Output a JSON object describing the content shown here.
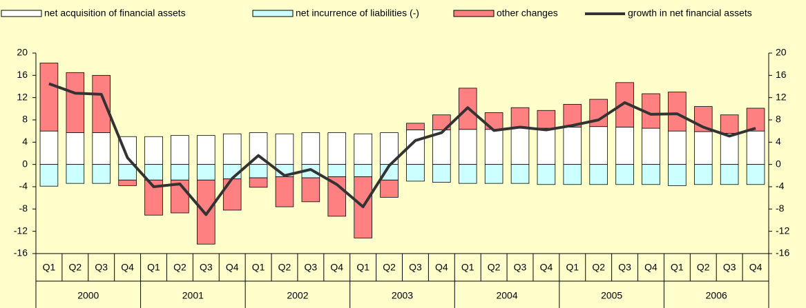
{
  "chart_data": {
    "type": "bar",
    "stacked": true,
    "categories": [
      "Q1",
      "Q2",
      "Q3",
      "Q4",
      "Q1",
      "Q2",
      "Q3",
      "Q4",
      "Q1",
      "Q2",
      "Q3",
      "Q4",
      "Q1",
      "Q2",
      "Q3",
      "Q4",
      "Q1",
      "Q2",
      "Q3",
      "Q4",
      "Q1",
      "Q2",
      "Q3",
      "Q4",
      "Q1",
      "Q2",
      "Q3",
      "Q4"
    ],
    "years": [
      "2000",
      "2001",
      "2002",
      "2003",
      "2004",
      "2005",
      "2006"
    ],
    "ylim": [
      -16,
      20
    ],
    "yticks": [
      -16,
      -12,
      -8,
      -4,
      0,
      4,
      8,
      12,
      16,
      20
    ],
    "series": [
      {
        "name": "net acquisition of financial assets",
        "color": "#ffffff",
        "values": [
          6.0,
          5.7,
          5.7,
          5.0,
          5.0,
          5.2,
          5.2,
          5.5,
          5.7,
          5.5,
          5.7,
          5.7,
          5.5,
          5.7,
          6.2,
          6.2,
          6.3,
          6.3,
          6.5,
          6.5,
          6.7,
          6.8,
          6.7,
          6.5,
          6.0,
          5.9,
          5.6,
          6.0
        ]
      },
      {
        "name": "net incurrence of liabilities (-)",
        "color": "#ccffff",
        "values": [
          -3.9,
          -3.4,
          -3.4,
          -2.8,
          -2.8,
          -2.8,
          -2.8,
          -2.6,
          -2.4,
          -2.2,
          -2.4,
          -2.2,
          -2.2,
          -2.8,
          -3.0,
          -3.2,
          -3.4,
          -3.4,
          -3.4,
          -3.6,
          -3.6,
          -3.6,
          -3.6,
          -3.6,
          -3.8,
          -3.6,
          -3.6,
          -3.6
        ]
      },
      {
        "name": "other changes",
        "color": "#ff8080",
        "values": [
          12.2,
          10.8,
          10.3,
          -1.0,
          -6.3,
          -5.9,
          -11.5,
          -5.6,
          -1.7,
          -5.4,
          -4.3,
          -7.1,
          -11.0,
          -3.1,
          1.2,
          2.7,
          7.4,
          3.0,
          3.7,
          3.2,
          4.1,
          4.9,
          8.0,
          6.2,
          7.0,
          4.5,
          3.3,
          4.1
        ]
      },
      {
        "name": "growth in net financial assets",
        "type": "line",
        "color": "#333333",
        "values": [
          14.5,
          12.8,
          12.6,
          1.2,
          -4.0,
          -3.5,
          -9.0,
          -2.5,
          1.6,
          -2.0,
          -0.9,
          -3.6,
          -7.6,
          -0.2,
          4.3,
          5.7,
          10.2,
          6.1,
          6.7,
          6.2,
          7.0,
          8.0,
          11.1,
          9.0,
          9.1,
          6.7,
          5.1,
          6.5
        ]
      }
    ]
  }
}
